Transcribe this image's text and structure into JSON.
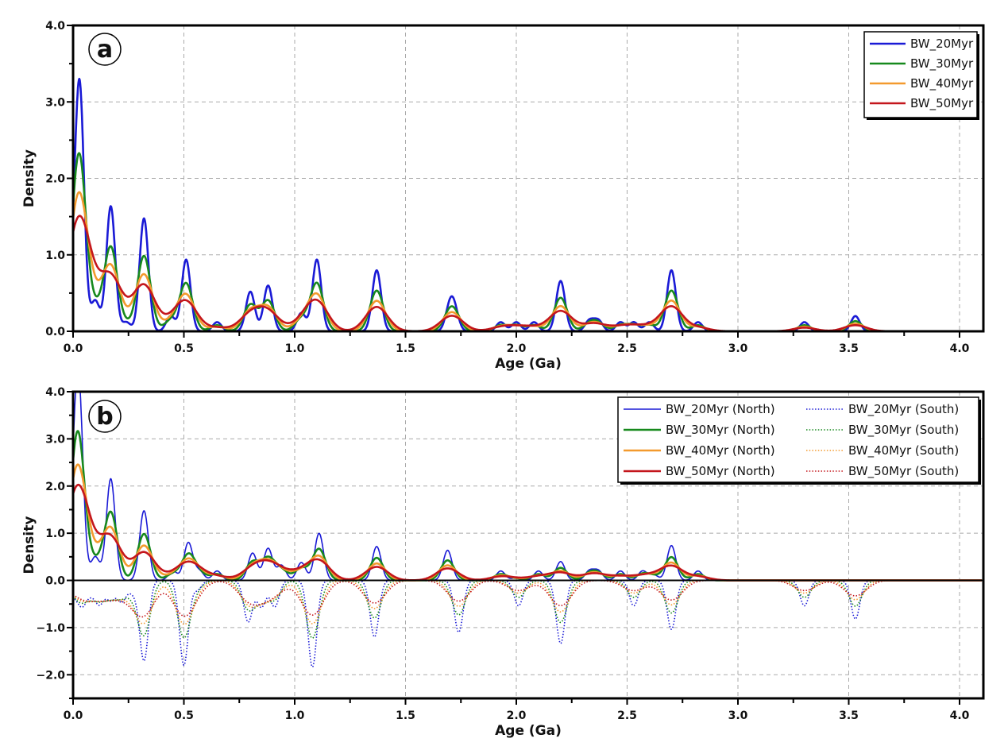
{
  "colors": {
    "bw20": "#1a1ad6",
    "bw30": "#17891d",
    "bw40": "#f39a2e",
    "bw50": "#c4161c"
  },
  "chart_data": [
    {
      "type": "line",
      "panel_label": "a",
      "xlabel": "Age (Ga)",
      "ylabel": "Density",
      "xlim": [
        0,
        4.1
      ],
      "ylim": [
        0,
        4.0
      ],
      "xticks": [
        "0.0",
        "0.5",
        "1.0",
        "1.5",
        "2.0",
        "2.5",
        "3.0",
        "3.5",
        "4.0"
      ],
      "xtick_values": [
        0,
        0.5,
        1,
        1.5,
        2,
        2.5,
        3,
        3.5,
        4
      ],
      "yticks": [
        "0.0",
        "1.0",
        "2.0",
        "3.0",
        "4.0"
      ],
      "ytick_values": [
        0,
        1,
        2,
        3,
        4
      ],
      "grid": true,
      "legend_position": "top-right",
      "legend": [
        "BW_20Myr",
        "BW_30Myr",
        "BW_40Myr",
        "BW_50Myr"
      ],
      "series": [
        {
          "name": "BW_20Myr",
          "bandwidth_myr": 20,
          "color_key": "bw20",
          "style": "solid",
          "sign": 1,
          "group": "all"
        },
        {
          "name": "BW_30Myr",
          "bandwidth_myr": 30,
          "color_key": "bw30",
          "style": "solid",
          "sign": 1,
          "group": "all"
        },
        {
          "name": "BW_40Myr",
          "bandwidth_myr": 40,
          "color_key": "bw40",
          "style": "solid",
          "sign": 1,
          "group": "all"
        },
        {
          "name": "BW_50Myr",
          "bandwidth_myr": 50,
          "color_key": "bw50",
          "style": "solid",
          "sign": 1,
          "group": "all"
        }
      ],
      "age_components": {
        "all": [
          [
            0.0,
            0.03
          ],
          [
            0.03,
            0.155
          ],
          [
            0.1,
            0.02
          ],
          [
            0.17,
            0.082
          ],
          [
            0.24,
            0.006
          ],
          [
            0.32,
            0.074
          ],
          [
            0.44,
            0.01
          ],
          [
            0.51,
            0.047
          ],
          [
            0.65,
            0.006
          ],
          [
            0.8,
            0.026
          ],
          [
            0.88,
            0.03
          ],
          [
            1.03,
            0.012
          ],
          [
            1.1,
            0.047
          ],
          [
            1.37,
            0.04
          ],
          [
            1.7,
            0.014
          ],
          [
            1.72,
            0.012
          ],
          [
            1.93,
            0.006
          ],
          [
            2.0,
            0.006
          ],
          [
            2.08,
            0.006
          ],
          [
            2.2,
            0.033
          ],
          [
            2.33,
            0.007
          ],
          [
            2.37,
            0.007
          ],
          [
            2.47,
            0.006
          ],
          [
            2.53,
            0.006
          ],
          [
            2.6,
            0.006
          ],
          [
            2.7,
            0.04
          ],
          [
            2.82,
            0.006
          ],
          [
            3.3,
            0.006
          ],
          [
            3.53,
            0.01
          ]
        ]
      }
    },
    {
      "type": "line",
      "panel_label": "b",
      "xlabel": "Age (Ga)",
      "ylabel": "Density",
      "xlim": [
        0,
        4.1
      ],
      "ylim": [
        -2.5,
        4.0
      ],
      "xticks": [
        "0.0",
        "0.5",
        "1.0",
        "1.5",
        "2.0",
        "2.5",
        "3.0",
        "3.5",
        "4.0"
      ],
      "xtick_values": [
        0,
        0.5,
        1,
        1.5,
        2,
        2.5,
        3,
        3.5,
        4
      ],
      "yticks": [
        "−2.0",
        "−1.0",
        "0.0",
        "1.0",
        "2.0",
        "3.0",
        "4.0"
      ],
      "ytick_values": [
        -2,
        -1,
        0,
        1,
        2,
        3,
        4
      ],
      "grid": true,
      "legend_position": "top-right",
      "legend": [
        "BW_20Myr (North)",
        "BW_30Myr (North)",
        "BW_40Myr (North)",
        "BW_50Myr (North)",
        "BW_20Myr (South)",
        "BW_30Myr (South)",
        "BW_40Myr (South)",
        "BW_50Myr (South)"
      ],
      "series": [
        {
          "name": "BW_20Myr (North)",
          "bandwidth_myr": 20,
          "color_key": "bw20",
          "style": "solid",
          "sign": 1,
          "group": "north"
        },
        {
          "name": "BW_30Myr (North)",
          "bandwidth_myr": 30,
          "color_key": "bw30",
          "style": "solid",
          "sign": 1,
          "group": "north"
        },
        {
          "name": "BW_40Myr (North)",
          "bandwidth_myr": 40,
          "color_key": "bw40",
          "style": "solid",
          "sign": 1,
          "group": "north"
        },
        {
          "name": "BW_50Myr (North)",
          "bandwidth_myr": 50,
          "color_key": "bw50",
          "style": "solid",
          "sign": 1,
          "group": "north"
        },
        {
          "name": "BW_20Myr (South)",
          "bandwidth_myr": 20,
          "color_key": "bw20",
          "style": "dotted",
          "sign": -1,
          "group": "south"
        },
        {
          "name": "BW_30Myr (South)",
          "bandwidth_myr": 30,
          "color_key": "bw30",
          "style": "dotted",
          "sign": -1,
          "group": "south"
        },
        {
          "name": "BW_40Myr (South)",
          "bandwidth_myr": 40,
          "color_key": "bw40",
          "style": "dotted",
          "sign": -1,
          "group": "south"
        },
        {
          "name": "BW_50Myr (South)",
          "bandwidth_myr": 50,
          "color_key": "bw50",
          "style": "dotted",
          "sign": -1,
          "group": "south"
        }
      ],
      "age_components": {
        "north": [
          [
            0.0,
            0.05
          ],
          [
            0.025,
            0.2
          ],
          [
            0.1,
            0.025
          ],
          [
            0.17,
            0.108
          ],
          [
            0.32,
            0.074
          ],
          [
            0.45,
            0.01
          ],
          [
            0.52,
            0.04
          ],
          [
            0.57,
            0.01
          ],
          [
            0.65,
            0.01
          ],
          [
            0.81,
            0.029
          ],
          [
            0.88,
            0.034
          ],
          [
            0.94,
            0.016
          ],
          [
            1.03,
            0.019
          ],
          [
            1.11,
            0.05
          ],
          [
            1.37,
            0.036
          ],
          [
            1.69,
            0.032
          ],
          [
            1.93,
            0.01
          ],
          [
            2.0,
            0.003
          ],
          [
            2.1,
            0.01
          ],
          [
            2.2,
            0.02
          ],
          [
            2.33,
            0.01
          ],
          [
            2.37,
            0.01
          ],
          [
            2.47,
            0.01
          ],
          [
            2.57,
            0.01
          ],
          [
            2.62,
            0.006
          ],
          [
            2.7,
            0.037
          ],
          [
            2.82,
            0.01
          ]
        ],
        "south": [
          [
            0.0,
            0.014
          ],
          [
            0.04,
            0.025
          ],
          [
            0.08,
            0.012
          ],
          [
            0.12,
            0.024
          ],
          [
            0.17,
            0.02
          ],
          [
            0.22,
            0.022
          ],
          [
            0.27,
            0.012
          ],
          [
            0.32,
            0.085
          ],
          [
            0.5,
            0.09
          ],
          [
            0.56,
            0.01
          ],
          [
            0.79,
            0.044
          ],
          [
            0.85,
            0.028
          ],
          [
            0.91,
            0.028
          ],
          [
            1.08,
            0.092
          ],
          [
            1.36,
            0.06
          ],
          [
            1.74,
            0.055
          ],
          [
            2.01,
            0.027
          ],
          [
            2.2,
            0.067
          ],
          [
            2.53,
            0.027
          ],
          [
            2.7,
            0.052
          ],
          [
            3.3,
            0.027
          ],
          [
            3.53,
            0.041
          ]
        ]
      }
    }
  ]
}
